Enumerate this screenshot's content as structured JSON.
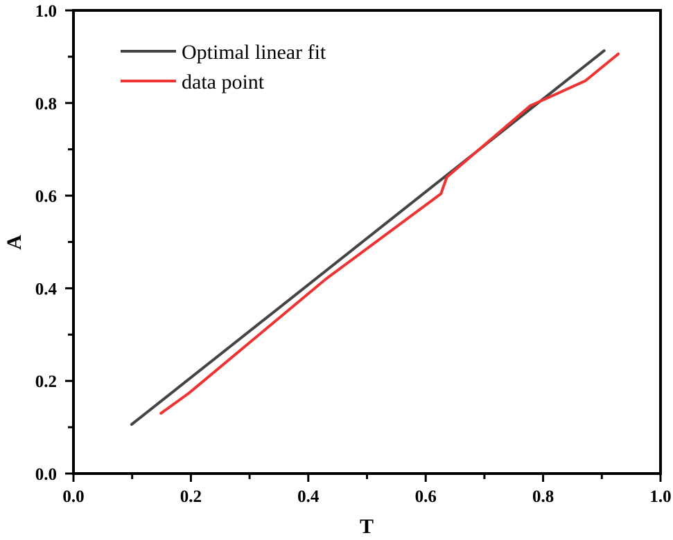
{
  "chart_data": {
    "type": "line",
    "title": "",
    "xlabel": "T",
    "ylabel": "A",
    "xlim": [
      0.0,
      1.0
    ],
    "ylim": [
      0.0,
      1.0
    ],
    "xticks": [
      "0.0",
      "0.2",
      "0.4",
      "0.6",
      "0.8",
      "1.0"
    ],
    "yticks": [
      "0.0",
      "0.2",
      "0.4",
      "0.6",
      "0.8",
      "1.0"
    ],
    "grid": false,
    "legend_position": "upper left",
    "series": [
      {
        "name": "Optimal linear fit",
        "color": "#444444",
        "x": [
          0.099,
          0.904
        ],
        "y": [
          0.106,
          0.913
        ]
      },
      {
        "name": "data point",
        "color": "#ee3333",
        "x": [
          0.149,
          0.196,
          0.43,
          0.626,
          0.636,
          0.778,
          0.872,
          0.928
        ],
        "y": [
          0.13,
          0.173,
          0.42,
          0.604,
          0.64,
          0.794,
          0.848,
          0.906
        ]
      }
    ]
  },
  "legend": {
    "items": [
      {
        "label": "Optimal linear fit",
        "color": "#444444"
      },
      {
        "label": "data point",
        "color": "#ee3333"
      }
    ]
  }
}
